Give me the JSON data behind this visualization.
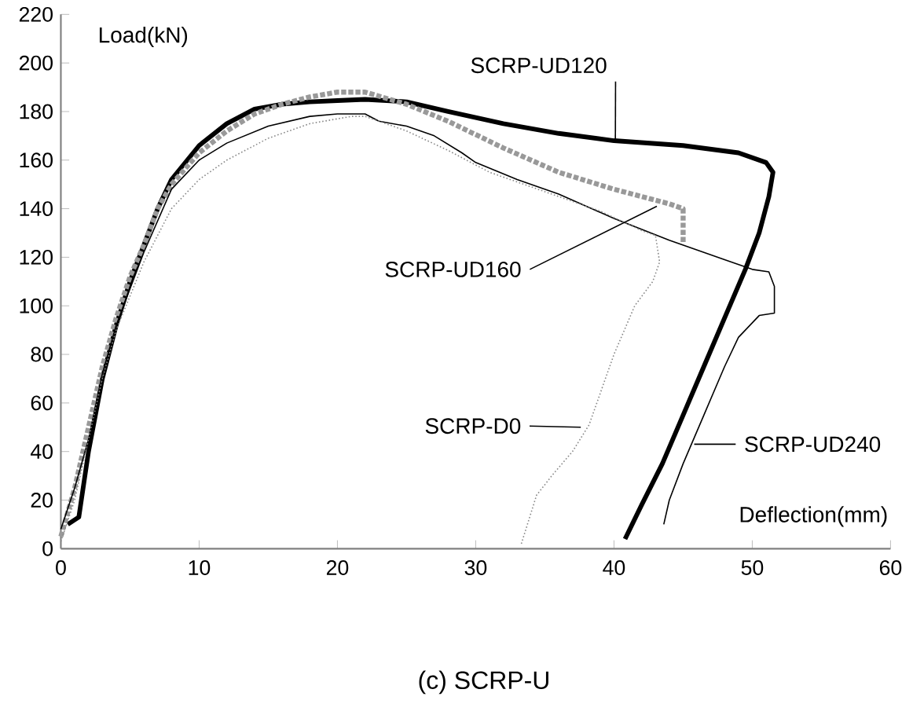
{
  "chart_data": {
    "type": "line",
    "title": "(c) SCRP-U",
    "xlabel": "Deflection(mm)",
    "ylabel": "Load(kN)",
    "xlim": [
      0,
      60
    ],
    "ylim": [
      0,
      220
    ],
    "xticks": [
      0,
      10,
      20,
      30,
      40,
      50,
      60
    ],
    "yticks": [
      0,
      20,
      40,
      60,
      80,
      100,
      120,
      140,
      160,
      180,
      200,
      220
    ],
    "grid": false,
    "marker": "none",
    "annotations": [
      {
        "text": "SCRP-UD120",
        "x": 40.1,
        "y": 168
      },
      {
        "text": "SCRP-UD160",
        "x": 43.1,
        "y": 141
      },
      {
        "text": "SCRP-UD240",
        "x": 45.8,
        "y": 43
      },
      {
        "text": "SCRP-D0",
        "x": 37.6,
        "y": 50
      }
    ],
    "series": [
      {
        "color": "#000000",
        "line_style": "solid",
        "x": [
          0.5,
          1.3,
          2,
          3,
          4,
          5,
          6,
          7,
          8,
          10,
          12,
          14,
          16,
          18,
          20,
          22,
          25,
          28,
          32,
          36,
          40,
          45,
          49,
          51,
          51.5,
          51.2,
          50.5,
          49.5,
          48,
          46.5,
          45,
          43.5,
          42,
          40.8
        ],
        "values": [
          10,
          13,
          40,
          70,
          92,
          110,
          125,
          140,
          152,
          166,
          175,
          181,
          183,
          184,
          184.5,
          185,
          184,
          180,
          175,
          171,
          168,
          166,
          163,
          159,
          155,
          145,
          130,
          115,
          95,
          75,
          55,
          35,
          18,
          4
        ]
      },
      {
        "color": "#999999",
        "line_style": "dotted",
        "x": [
          0,
          1,
          2,
          3,
          4,
          5,
          6,
          7,
          8,
          10,
          12,
          14,
          16,
          18,
          20,
          22,
          25,
          28,
          32,
          36,
          40,
          44,
          45,
          45
        ],
        "values": [
          5,
          25,
          50,
          75,
          95,
          112,
          125,
          140,
          150,
          163,
          172,
          179,
          183,
          186,
          188,
          188,
          183,
          176,
          165,
          155,
          148,
          142,
          140,
          126
        ]
      },
      {
        "color": "#000000",
        "line_style": "solid",
        "x": [
          0,
          1,
          2,
          3,
          4,
          6,
          8,
          10,
          12,
          15,
          18,
          20,
          22,
          23,
          25,
          27,
          29,
          30,
          33,
          36,
          40,
          44,
          48,
          50,
          51.2,
          51.6,
          51.6,
          50.5,
          49,
          48,
          46.5,
          45,
          44,
          43.6
        ],
        "values": [
          8,
          25,
          45,
          72,
          92,
          122,
          148,
          160,
          167,
          174,
          178,
          179,
          179,
          176,
          174,
          170,
          163,
          159,
          152,
          146,
          136,
          127,
          119,
          115,
          114,
          108,
          97,
          96,
          87,
          75,
          55,
          35,
          20,
          10
        ]
      },
      {
        "color": "#888888",
        "line_style": "dotted",
        "x": [
          0,
          1,
          2,
          3,
          4,
          6,
          8,
          10,
          12,
          15,
          18,
          21,
          22,
          25,
          28,
          31,
          35,
          39,
          42,
          43,
          43.3,
          42.8,
          41.5,
          40,
          38.2,
          37,
          35.5,
          34.4,
          33.3
        ],
        "values": [
          3,
          20,
          45,
          70,
          90,
          118,
          140,
          152,
          160,
          169,
          175,
          178,
          178,
          172,
          164,
          155,
          147,
          139,
          131,
          129,
          118,
          110,
          100,
          80,
          51,
          40,
          30,
          22,
          2
        ]
      }
    ]
  }
}
